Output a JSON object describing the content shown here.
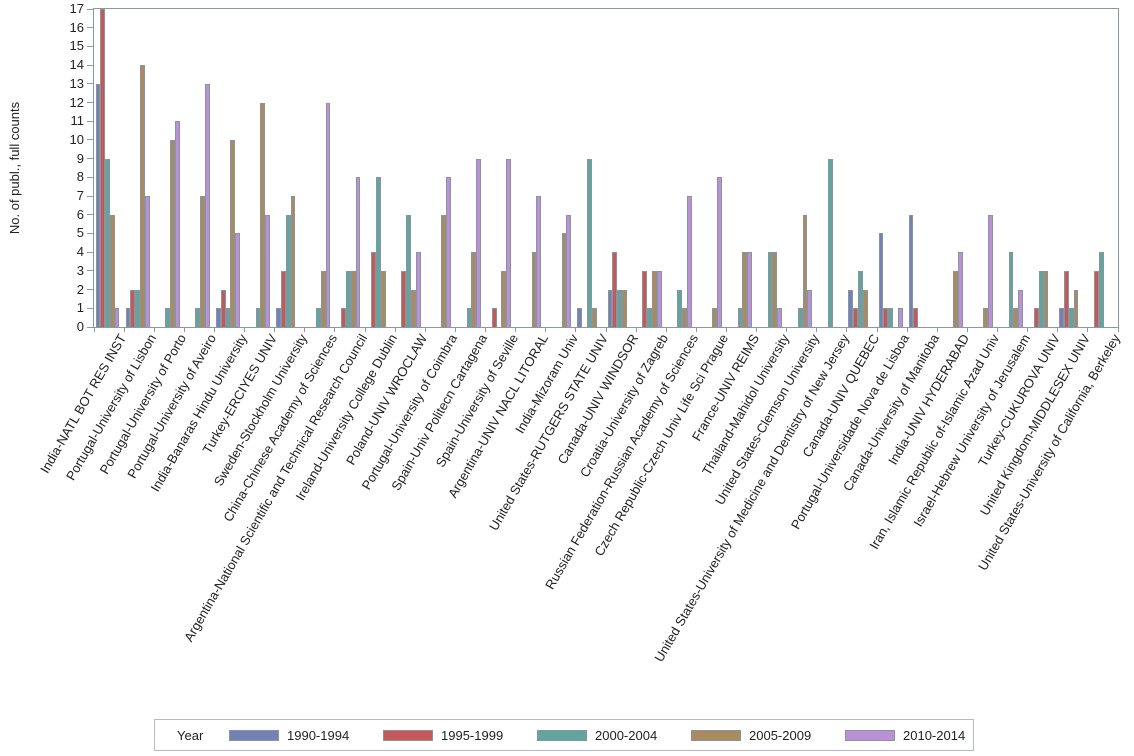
{
  "y_axis": {
    "title": "No. of publ., full counts"
  },
  "legend": {
    "title": "Year"
  },
  "chart_data": {
    "type": "bar",
    "title": "",
    "xlabel": "",
    "ylabel": "No. of publ., full counts",
    "ylim": [
      0,
      17
    ],
    "y_ticks": [
      0,
      1,
      2,
      3,
      4,
      5,
      6,
      7,
      8,
      9,
      10,
      11,
      12,
      13,
      14,
      15,
      16,
      17
    ],
    "grid": "off",
    "legend_position": "bottom",
    "legend_title": "Year",
    "categories": [
      "India-NATL BOT RES INST",
      "Portugal-University of Lisbon",
      "Portugal-University of Porto",
      "Portugal-University of Aveiro",
      "India-Banaras Hindu University",
      "Turkey-ERCIYES UNIV",
      "Sweden-Stockholm University",
      "China-Chinese Academy of Sciences",
      "Argentina-National Scientific and Technical Research Council",
      "Ireland-University College Dublin",
      "Poland-UNIV WROCLAW",
      "Portugal-University of Coimbra",
      "Spain-Univ Politecn Cartagena",
      "Spain-University of Seville",
      "Argentina-UNIV NACL LITORAL",
      "India-Mizoram Univ",
      "United States-RUTGERS STATE UNIV",
      "Canada-UNIV WINDSOR",
      "Croatia-University of Zagreb",
      "Russian Federation-Russian Academy of Sciences",
      "Czech Republic-Czech Univ Life Sci Prague",
      "France-UNIV REIMS",
      "Thailand-Mahidol University",
      "United States-Clemson University",
      "United States-University of Medicine and Dentistry of New Jersey",
      "Canada-UNIV QUEBEC",
      "Portugal-Universidade Nova de Lisboa",
      "Canada-University of Manitoba",
      "India-UNIV HYDERABAD",
      "Iran, Islamic Republic of-Islamic Azad Univ",
      "Israel-Hebrew University of Jerusalem",
      "Turkey-CUKUROVA UNIV",
      "United Kingdom-MIDDLESEX UNIV",
      "United States-University of California, Berkeley"
    ],
    "series": [
      {
        "name": "1990-1994",
        "color": "#7381b5",
        "values": [
          13,
          1,
          0,
          0,
          1,
          0,
          1,
          0,
          0,
          0,
          0,
          0,
          0,
          0,
          0,
          0,
          1,
          2,
          0,
          0,
          0,
          0,
          0,
          0,
          0,
          2,
          5,
          6,
          0,
          0,
          0,
          0,
          1,
          0
        ]
      },
      {
        "name": "1995-1999",
        "color": "#c4595a",
        "values": [
          17,
          2,
          0,
          0,
          2,
          0,
          3,
          0,
          1,
          4,
          3,
          0,
          0,
          1,
          0,
          0,
          0,
          4,
          3,
          0,
          0,
          0,
          0,
          0,
          0,
          1,
          1,
          1,
          0,
          0,
          0,
          1,
          3,
          3
        ]
      },
      {
        "name": "2000-2004",
        "color": "#61a59e",
        "values": [
          9,
          2,
          1,
          1,
          1,
          1,
          6,
          1,
          3,
          8,
          6,
          0,
          1,
          0,
          0,
          0,
          9,
          2,
          1,
          2,
          0,
          1,
          4,
          1,
          9,
          3,
          1,
          0,
          0,
          0,
          4,
          3,
          1,
          4
        ]
      },
      {
        "name": "2005-2009",
        "color": "#a98b5f",
        "values": [
          6,
          14,
          10,
          7,
          10,
          12,
          7,
          3,
          3,
          3,
          2,
          6,
          4,
          3,
          4,
          5,
          1,
          2,
          3,
          1,
          1,
          4,
          4,
          6,
          0,
          2,
          0,
          0,
          3,
          1,
          1,
          3,
          2,
          0
        ]
      },
      {
        "name": "2010-2014",
        "color": "#ba90d6",
        "values": [
          1,
          7,
          11,
          13,
          5,
          6,
          0,
          12,
          8,
          0,
          4,
          8,
          9,
          9,
          7,
          6,
          0,
          0,
          3,
          7,
          8,
          4,
          1,
          2,
          0,
          0,
          1,
          0,
          4,
          6,
          2,
          0,
          0,
          0
        ]
      }
    ]
  }
}
